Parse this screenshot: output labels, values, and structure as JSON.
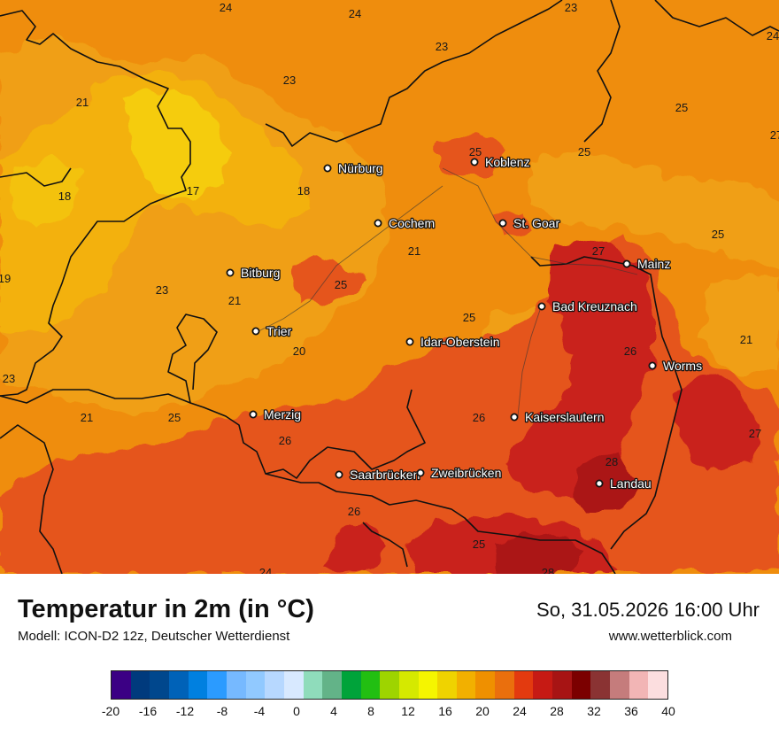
{
  "map": {
    "cities": [
      {
        "name": "Nürburg"
      },
      {
        "name": "Koblenz"
      },
      {
        "name": "Cochem"
      },
      {
        "name": "St. Goar"
      },
      {
        "name": "Bitburg"
      },
      {
        "name": "Mainz"
      },
      {
        "name": "Bad Kreuznach"
      },
      {
        "name": "Trier"
      },
      {
        "name": "Idar-Oberstein"
      },
      {
        "name": "Worms"
      },
      {
        "name": "Merzig"
      },
      {
        "name": "Kaiserslautern"
      },
      {
        "name": "Saarbrücken"
      },
      {
        "name": "Zweibrücken"
      },
      {
        "name": "Landau"
      }
    ],
    "value_labels": [
      "24",
      "24",
      "23",
      "24",
      "23",
      "23",
      "21",
      "25",
      "25",
      "25",
      "18",
      "17",
      "18",
      "27",
      "25",
      "19",
      "23",
      "21",
      "21",
      "25",
      "27",
      "25",
      "20",
      "26",
      "21",
      "23",
      "21",
      "25",
      "26",
      "26",
      "27",
      "28",
      "26",
      "25",
      "24",
      "28"
    ]
  },
  "footer": {
    "title": "Temperatur in 2m (in °C)",
    "model": "Modell: ICON-D2 12z, Deutscher Wetterdienst",
    "datetime": "So, 31.05.2026 16:00 Uhr",
    "website": "www.wetterblick.com"
  },
  "colorbar": {
    "colors": [
      "#3b0084",
      "#003a7d",
      "#00478d",
      "#0062b8",
      "#0080e0",
      "#2b9bff",
      "#76b9ff",
      "#91c9ff",
      "#b7d8ff",
      "#d8e9ff",
      "#8fdcbb",
      "#63b388",
      "#00a33a",
      "#22bf12",
      "#9ed400",
      "#d5e900",
      "#f5f500",
      "#efd300",
      "#f2b000",
      "#ef9000",
      "#ea6f0d",
      "#e33a0f",
      "#c61a14",
      "#a71414",
      "#7b0000",
      "#8a3333",
      "#c57c7c",
      "#f2b5b5",
      "#fcdedf"
    ],
    "ticks": [
      "-20",
      "-16",
      "-12",
      "-8",
      "-4",
      "0",
      "4",
      "8",
      "12",
      "16",
      "20",
      "24",
      "28",
      "32",
      "36",
      "40"
    ]
  }
}
